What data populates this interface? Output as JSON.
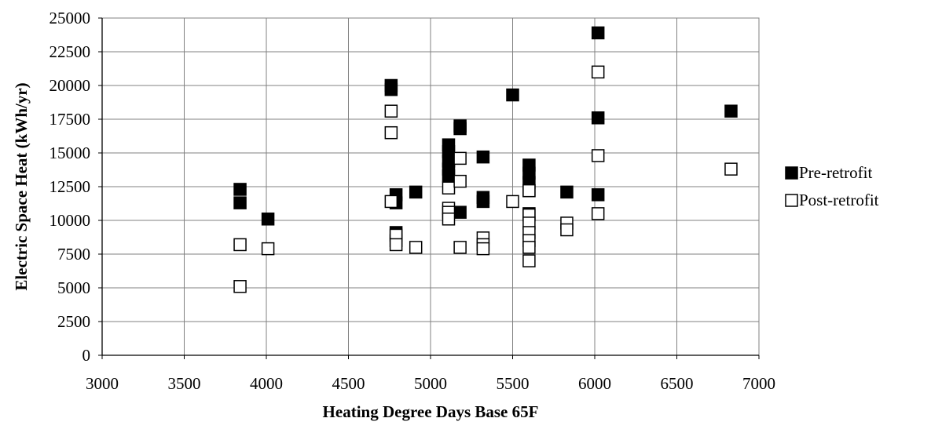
{
  "chart_data": {
    "type": "scatter",
    "xlabel": "Heating Degree Days Base 65F",
    "ylabel": "Electric Space Heat (kWh/yr)",
    "xlim": [
      3000,
      7000
    ],
    "ylim": [
      0,
      25000
    ],
    "x_ticks": [
      "3000",
      "3500",
      "4000",
      "4500",
      "5000",
      "5500",
      "6000",
      "6500",
      "7000"
    ],
    "y_ticks": [
      "0",
      "2500",
      "5000",
      "7500",
      "10000",
      "12500",
      "15000",
      "17500",
      "20000",
      "22500",
      "25000"
    ],
    "grid": true,
    "legend_position": "right",
    "series": [
      {
        "name": "Pre-retrofit",
        "marker": "filled-square",
        "color": "#000000",
        "points": [
          [
            3840,
            12300
          ],
          [
            3840,
            11300
          ],
          [
            4010,
            10100
          ],
          [
            4760,
            20000
          ],
          [
            4760,
            19700
          ],
          [
            4790,
            11900
          ],
          [
            4790,
            11300
          ],
          [
            4790,
            9100
          ],
          [
            4790,
            8500
          ],
          [
            4910,
            12100
          ],
          [
            5110,
            15600
          ],
          [
            5110,
            15100
          ],
          [
            5110,
            14400
          ],
          [
            5110,
            13800
          ],
          [
            5110,
            13300
          ],
          [
            5180,
            17000
          ],
          [
            5180,
            16800
          ],
          [
            5180,
            10600
          ],
          [
            5320,
            14700
          ],
          [
            5320,
            11700
          ],
          [
            5320,
            11400
          ],
          [
            5500,
            19300
          ],
          [
            5600,
            14100
          ],
          [
            5600,
            13500
          ],
          [
            5600,
            12800
          ],
          [
            5600,
            12200
          ],
          [
            5600,
            10500
          ],
          [
            5830,
            12100
          ],
          [
            6020,
            23900
          ],
          [
            6020,
            17600
          ],
          [
            6020,
            11900
          ],
          [
            6830,
            18100
          ]
        ]
      },
      {
        "name": "Post-retrofit",
        "marker": "hollow-square",
        "color": "#ffffff",
        "points": [
          [
            3840,
            8200
          ],
          [
            3840,
            5100
          ],
          [
            4010,
            7900
          ],
          [
            4760,
            18100
          ],
          [
            4760,
            16500
          ],
          [
            4760,
            11400
          ],
          [
            4790,
            8900
          ],
          [
            4790,
            8200
          ],
          [
            4910,
            8000
          ],
          [
            5110,
            12400
          ],
          [
            5110,
            10900
          ],
          [
            5110,
            10600
          ],
          [
            5110,
            10100
          ],
          [
            5180,
            14600
          ],
          [
            5180,
            12900
          ],
          [
            5180,
            8000
          ],
          [
            5320,
            8700
          ],
          [
            5320,
            8200
          ],
          [
            5320,
            7900
          ],
          [
            5500,
            11400
          ],
          [
            5600,
            12200
          ],
          [
            5600,
            10400
          ],
          [
            5600,
            9800
          ],
          [
            5600,
            9100
          ],
          [
            5600,
            8500
          ],
          [
            5600,
            8000
          ],
          [
            5600,
            7000
          ],
          [
            5830,
            9800
          ],
          [
            5830,
            9300
          ],
          [
            6020,
            21000
          ],
          [
            6020,
            14800
          ],
          [
            6020,
            10500
          ],
          [
            6830,
            13800
          ]
        ]
      }
    ]
  }
}
